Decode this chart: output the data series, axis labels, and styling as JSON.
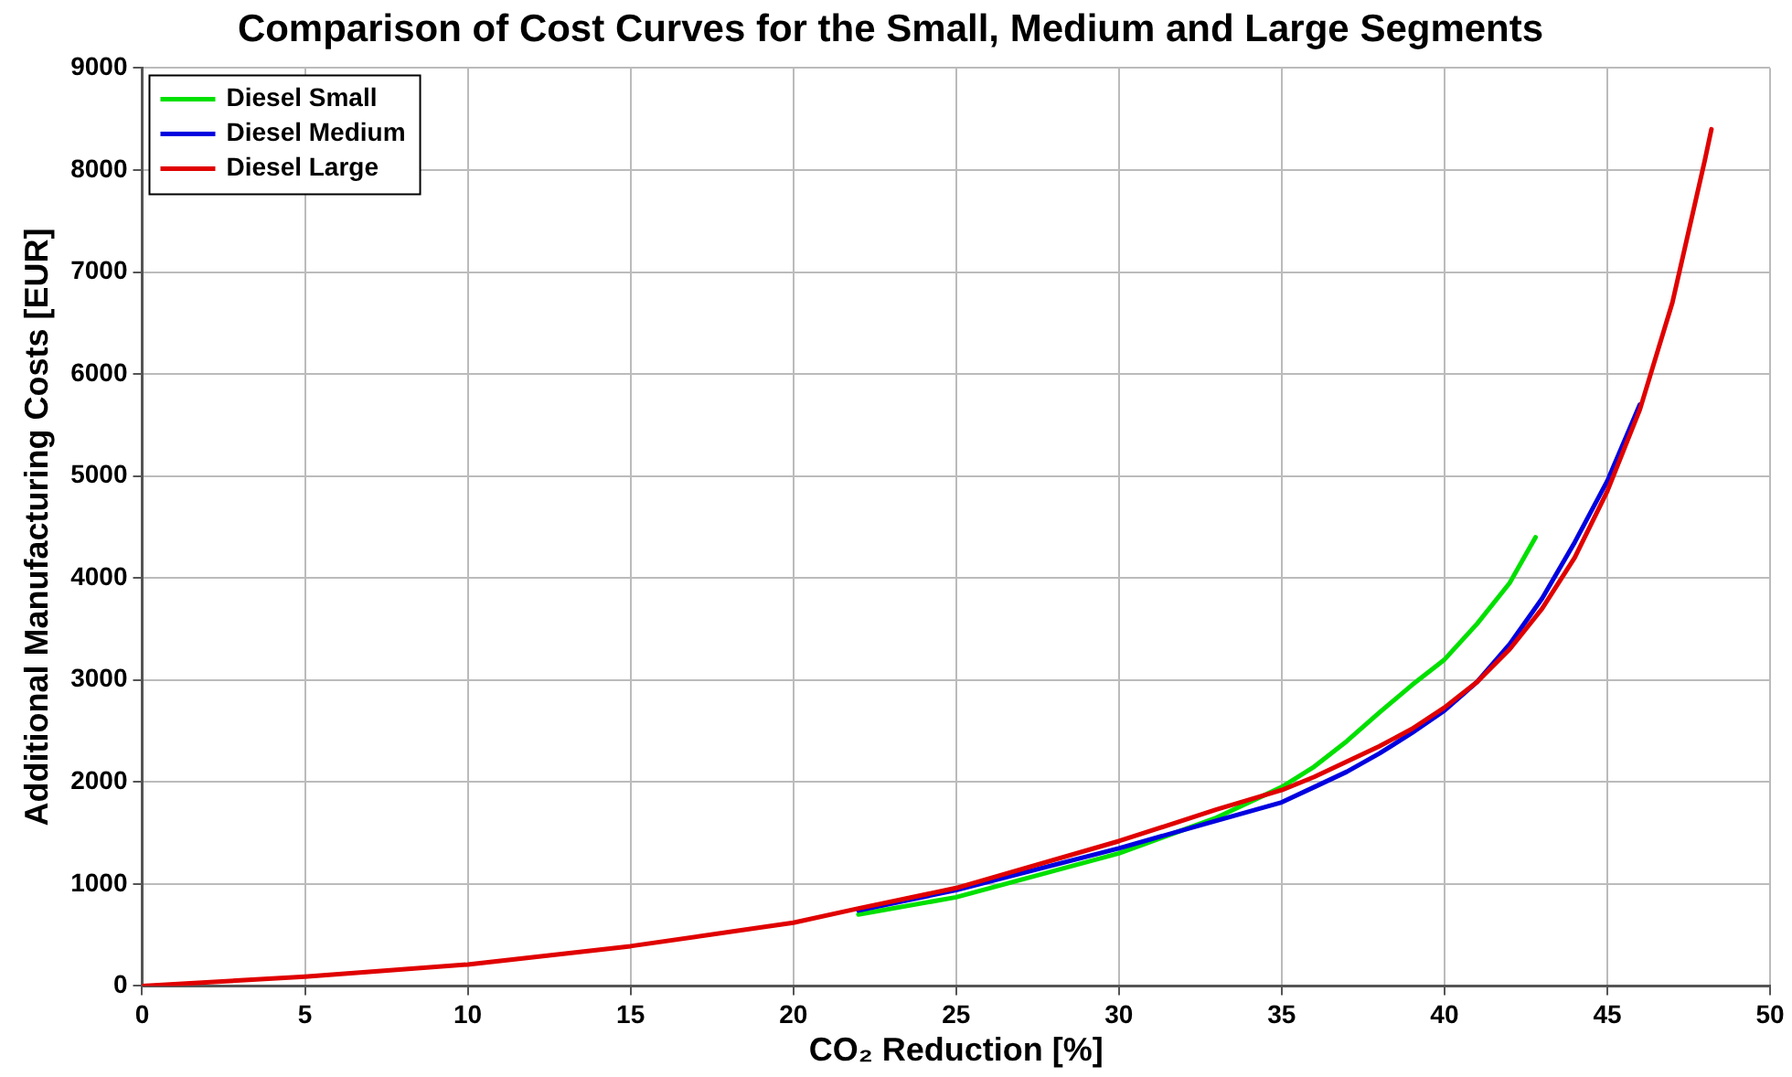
{
  "chart_data": {
    "type": "line",
    "title": "Comparison of Cost Curves for the Small, Medium and Large Segments",
    "xlabel": "CO₂ Reduction [%]",
    "ylabel": "Additional Manufacturing Costs [EUR]",
    "xlim": [
      0,
      50
    ],
    "xticks": [
      0,
      5,
      10,
      15,
      20,
      25,
      30,
      35,
      40,
      45,
      50
    ],
    "ylim": [
      0,
      9000
    ],
    "yticks": [
      0,
      1000,
      2000,
      3000,
      4000,
      5000,
      6000,
      7000,
      8000,
      9000
    ],
    "grid": true,
    "legend": "top left",
    "marker": "none",
    "line_style": "solid",
    "series": [
      {
        "name": "Diesel Small",
        "color": "#00e000",
        "x": [
          22,
          25,
          30,
          33,
          35,
          36,
          37,
          38,
          39,
          40,
          41,
          42,
          42.8
        ],
        "values": [
          700,
          870,
          1300,
          1650,
          1950,
          2150,
          2400,
          2680,
          2950,
          3200,
          3550,
          3950,
          4400
        ]
      },
      {
        "name": "Diesel Medium",
        "color": "#0000e0",
        "x": [
          22,
          25,
          30,
          33,
          35,
          36,
          37,
          38,
          39,
          40,
          41,
          42,
          43,
          44,
          45,
          46
        ],
        "values": [
          740,
          940,
          1350,
          1620,
          1800,
          1950,
          2100,
          2280,
          2480,
          2700,
          2980,
          3350,
          3800,
          4350,
          4950,
          5700
        ]
      },
      {
        "name": "Diesel Large",
        "color": "#e00000",
        "x": [
          0,
          5,
          10,
          15,
          20,
          22,
          25,
          30,
          33,
          35,
          36,
          37,
          38,
          39,
          40,
          41,
          42,
          43,
          44,
          45,
          46,
          47,
          48,
          48.2
        ],
        "values": [
          0,
          90,
          210,
          390,
          620,
          760,
          960,
          1420,
          1730,
          1920,
          2050,
          2200,
          2350,
          2520,
          2730,
          2980,
          3300,
          3700,
          4200,
          4850,
          5650,
          6700,
          8100,
          8400
        ]
      }
    ]
  }
}
